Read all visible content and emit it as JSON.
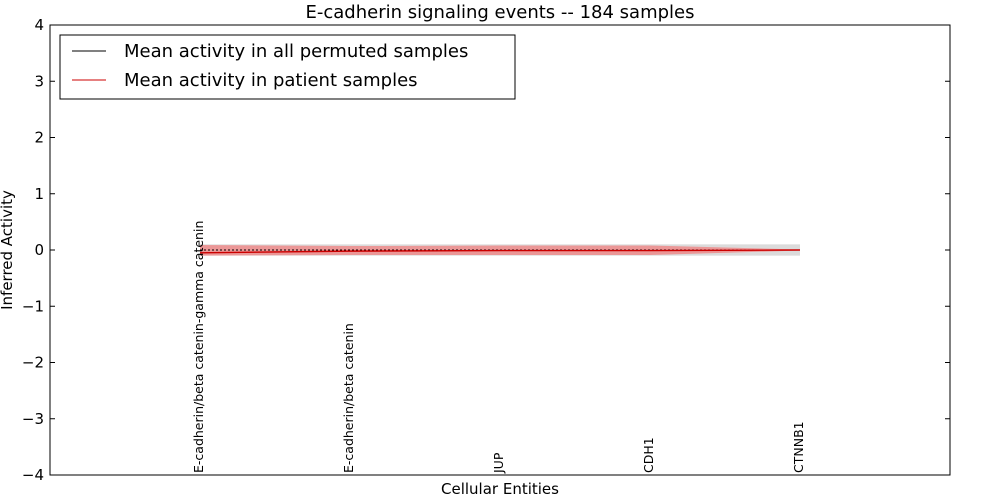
{
  "chart_data": {
    "type": "line",
    "title": "E-cadherin signaling events -- 184 samples",
    "xlabel": "Cellular Entities",
    "ylabel": "Inferred Activity",
    "ylim": [
      -4,
      4
    ],
    "yticks": [
      4,
      3,
      2,
      1,
      0,
      -1,
      -2,
      -3,
      -4
    ],
    "ytick_labels": [
      "4",
      "3",
      "2",
      "1",
      "0",
      "−1",
      "−2",
      "−3",
      "−4"
    ],
    "categories": [
      "E-cadherin/beta catenin-gamma catenin",
      "E-cadherin/beta catenin",
      "JUP",
      "CDH1",
      "CTNNB1"
    ],
    "series": [
      {
        "name": "Mean activity in all permuted samples",
        "color": "#000000",
        "values": [
          0.0,
          0.0,
          0.0,
          0.0,
          0.0
        ],
        "band_low": [
          -0.1,
          -0.1,
          -0.1,
          -0.1,
          -0.1
        ],
        "band_high": [
          0.1,
          0.1,
          0.1,
          0.1,
          0.1
        ],
        "band_color": "#cccccc"
      },
      {
        "name": "Mean activity in patient samples",
        "color": "#cc0000",
        "values": [
          -0.05,
          -0.02,
          -0.01,
          -0.01,
          0.0
        ],
        "band_low": [
          -0.1,
          -0.09,
          -0.09,
          -0.09,
          -0.01
        ],
        "band_high": [
          0.09,
          0.07,
          0.08,
          0.08,
          0.01
        ],
        "band_color": "#f08080"
      }
    ],
    "legend": {
      "placement": "top-left",
      "entries": [
        "Mean activity in all permuted samples",
        "Mean activity in patient samples"
      ]
    },
    "grid": false
  }
}
